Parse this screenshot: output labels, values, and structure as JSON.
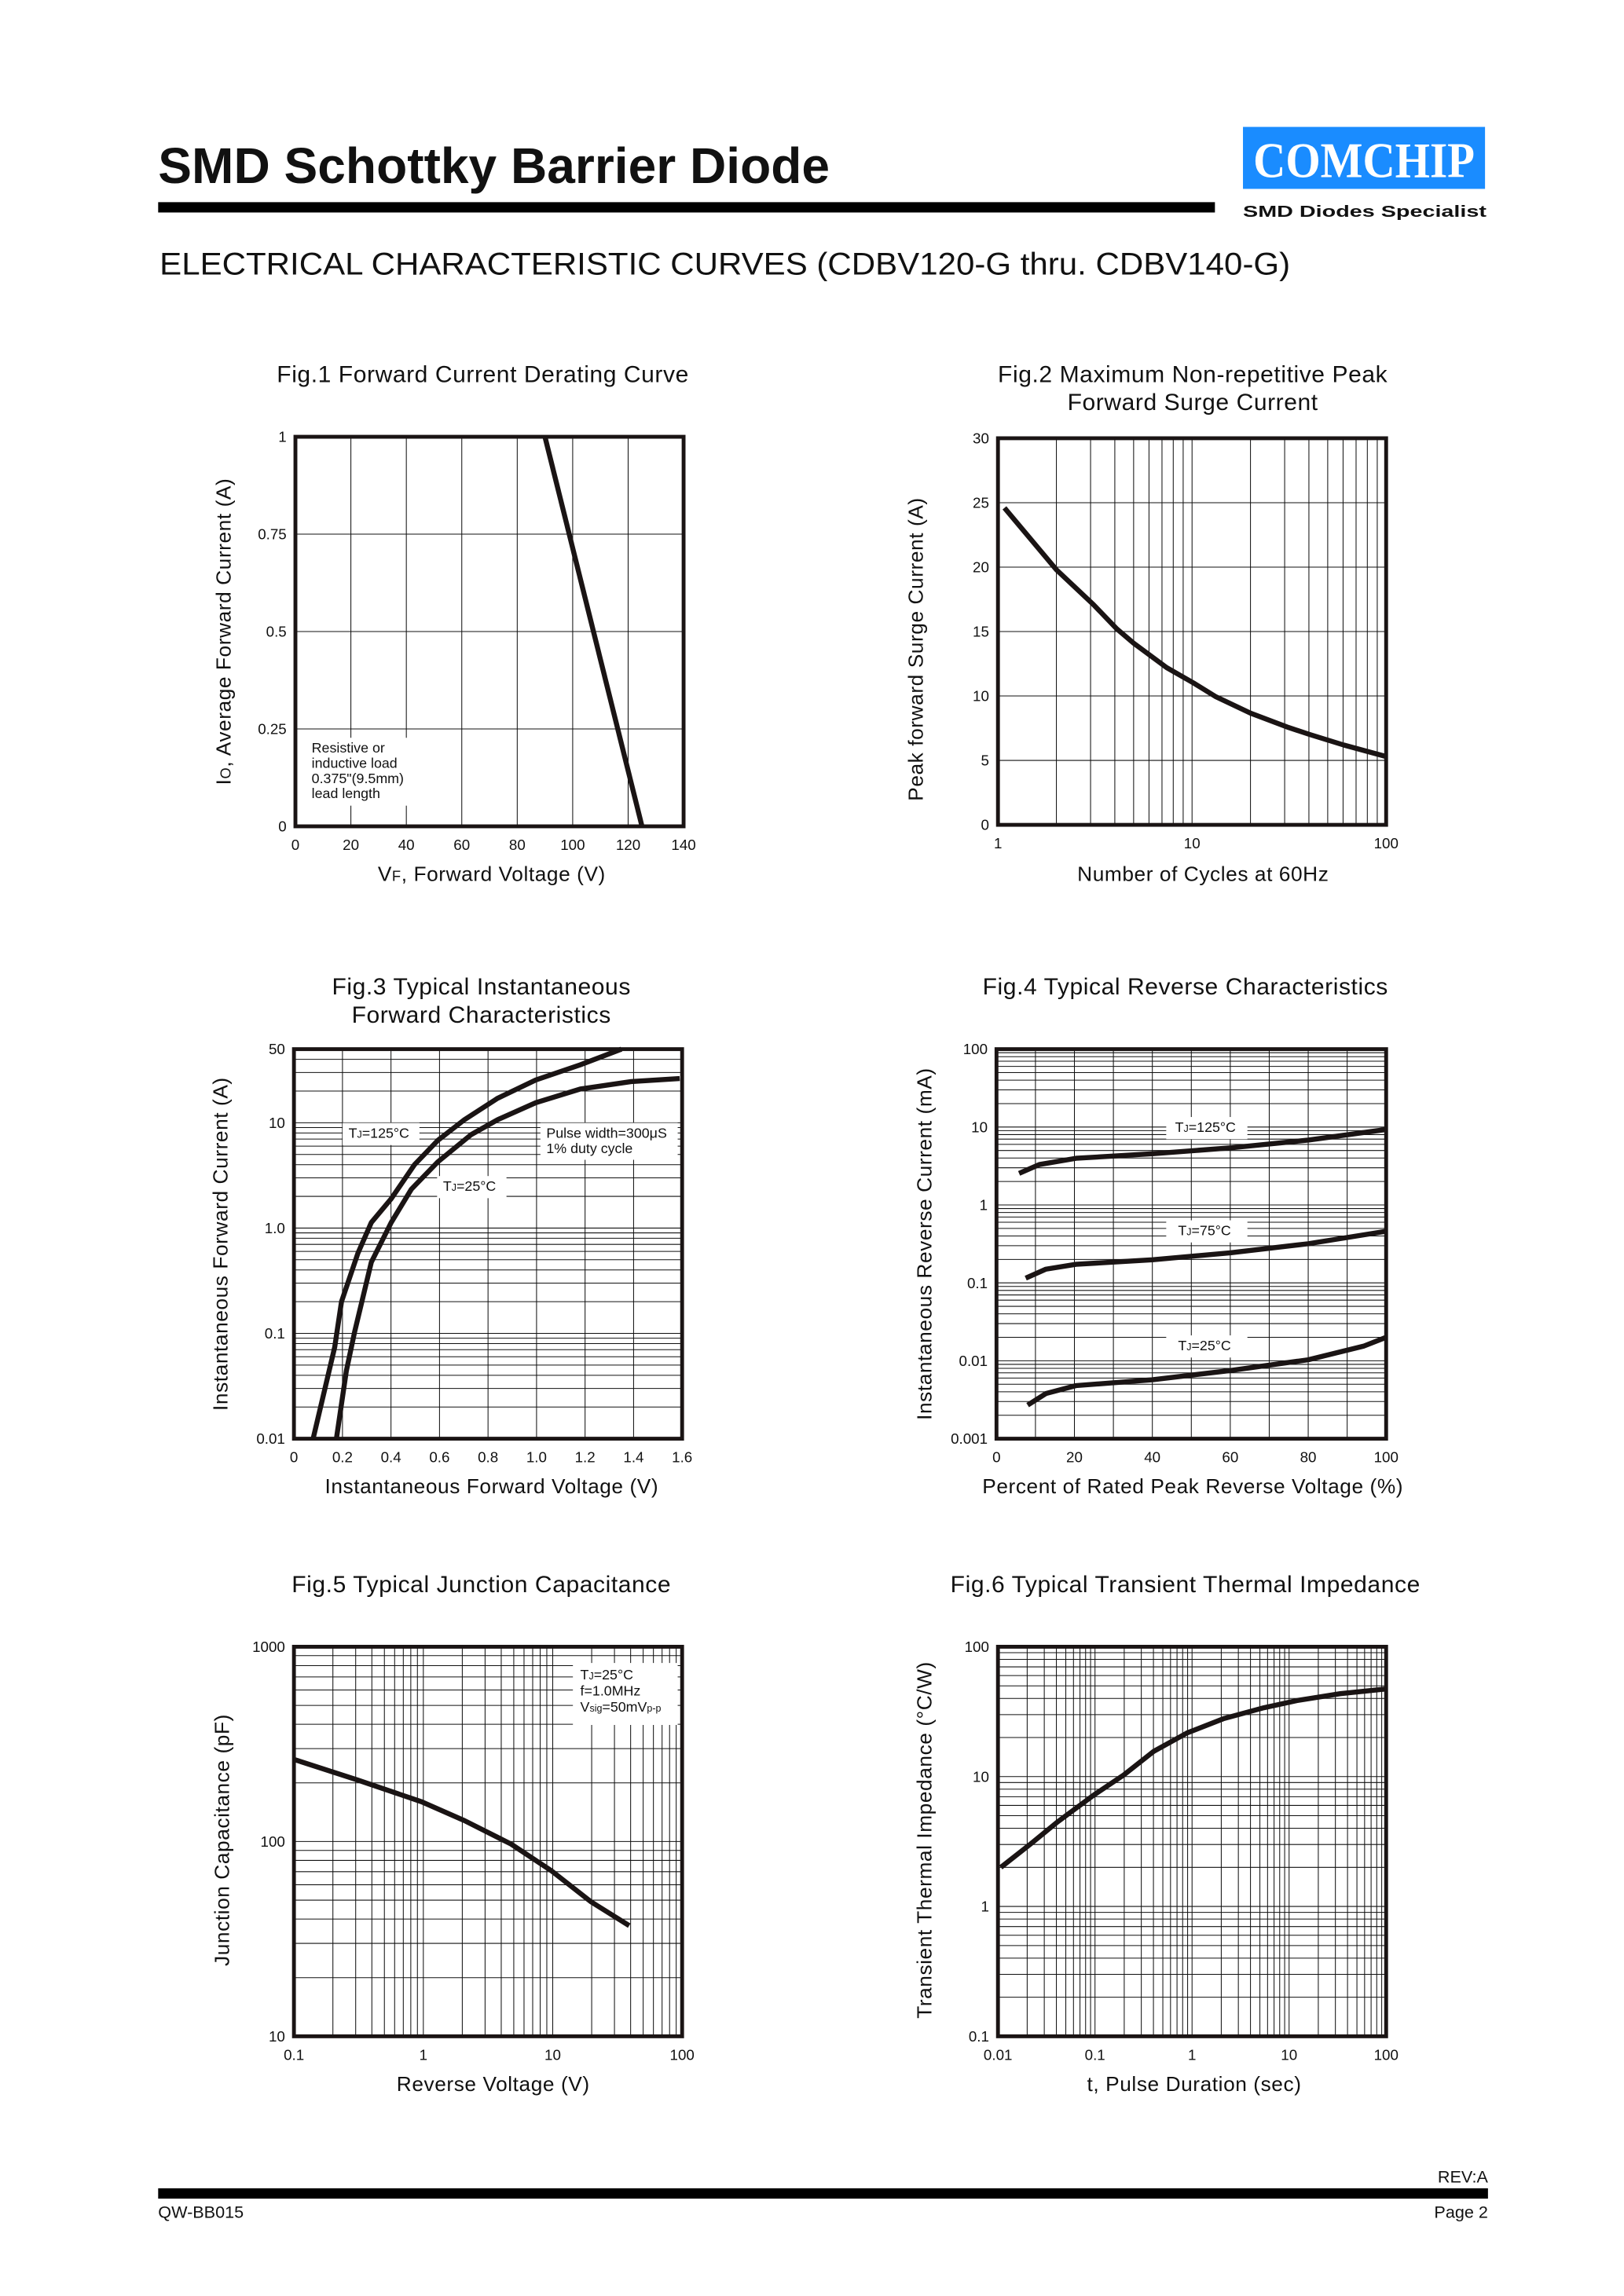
{
  "header": {
    "title": "SMD Schottky Barrier Diode",
    "logo_text": "COMCHIP",
    "logo_color": "#1a8cff",
    "tagline": "SMD Diodes Specialist",
    "subtitle": "ELECTRICAL CHARACTERISTIC CURVES (CDBV120-G thru. CDBV140-G)"
  },
  "footer": {
    "revision": "REV:A",
    "doc_code": "QW-BB015",
    "page": "Page 2"
  },
  "chart_data": [
    {
      "type": "line",
      "title_lines": [
        "Fig.1 Forward Current Derating Curve"
      ],
      "xlabel": {
        "main": "V",
        "sub": "F",
        "rest": ", Forward Voltage (V)"
      },
      "ylabel": {
        "main": "I",
        "sub": "O",
        "rest": ", Average Forward Current (A)"
      },
      "x_scale": "linear",
      "xlim": [
        0,
        140
      ],
      "x_grid_step": 20,
      "x_tick_values": [
        0,
        20,
        40,
        60,
        80,
        100,
        120,
        140
      ],
      "x_tick_labels": [
        "0",
        "20",
        "40",
        "60",
        "80",
        "100",
        "120",
        "140"
      ],
      "y_scale": "linear",
      "ylim": [
        0,
        1
      ],
      "y_grid_step": 0.25,
      "y_tick_values": [
        0,
        0.25,
        0.5,
        0.75,
        1
      ],
      "y_tick_labels": [
        "0",
        "0.25",
        "0.5",
        "0.75",
        "1"
      ],
      "grid": true,
      "series": [
        {
          "points": [
            [
              90,
              1
            ],
            [
              125,
              0
            ]
          ]
        }
      ],
      "annotations": [
        {
          "lines": [
            [
              [
                "Resistive or",
                0
              ]
            ],
            [
              [
                "inductive load",
                0
              ]
            ],
            [
              [
                "0.375\"(9.5mm)",
                0
              ]
            ],
            [
              [
                "lead length",
                0
              ]
            ]
          ]
        }
      ]
    },
    {
      "type": "line",
      "title_lines": [
        "Fig.2 Maximum Non-repetitive Peak",
        "Forward Surge Current"
      ],
      "xlabel": {
        "main": "Number of Cycles at 60Hz",
        "sub": "",
        "rest": ""
      },
      "ylabel": {
        "main": "Peak forward Surge Current (A)",
        "sub": "",
        "rest": ""
      },
      "x_scale": "log",
      "xlim": [
        1,
        100
      ],
      "x_tick_values": [
        1,
        10,
        100
      ],
      "x_tick_labels": [
        "1",
        "10",
        "100"
      ],
      "y_scale": "linear",
      "ylim": [
        0,
        30
      ],
      "y_grid_step": 5,
      "y_tick_values": [
        0,
        5,
        10,
        15,
        20,
        25,
        30
      ],
      "y_tick_labels": [
        "0",
        "5",
        "10",
        "15",
        "20",
        "25",
        "30"
      ],
      "grid": true,
      "series": [
        {
          "points": [
            [
              1.08,
              24.6
            ],
            [
              2.0,
              19.8
            ],
            [
              3.1,
              17.1
            ],
            [
              4.1,
              15.2
            ],
            [
              5.0,
              14.1
            ],
            [
              7.4,
              12.2
            ],
            [
              10.2,
              11.0
            ],
            [
              13.2,
              9.96
            ],
            [
              20,
              8.67
            ],
            [
              30.8,
              7.6
            ],
            [
              40.6,
              7.0
            ],
            [
              60.3,
              6.2
            ],
            [
              100,
              5.3
            ]
          ]
        }
      ],
      "annotations": []
    },
    {
      "type": "line",
      "title_lines": [
        "Fig.3 Typical Instantaneous",
        "Forward Characteristics"
      ],
      "xlabel": {
        "main": "Instantaneous Forward Voltage (V)",
        "sub": "",
        "rest": ""
      },
      "ylabel": {
        "main": "Instantaneous Forward Current (A)",
        "sub": "",
        "rest": ""
      },
      "x_scale": "linear",
      "xlim": [
        0,
        1.6
      ],
      "x_grid_step": 0.2,
      "x_tick_values": [
        0,
        0.2,
        0.4,
        0.6,
        0.8,
        1.0,
        1.2,
        1.4,
        1.6
      ],
      "x_tick_labels": [
        "0",
        "0.2",
        "0.4",
        "0.6",
        "0.8",
        "1.0",
        "1.2",
        "1.4",
        "1.6"
      ],
      "y_scale": "log",
      "ylim": [
        0.01,
        50
      ],
      "y_tick_values": [
        0.01,
        0.1,
        1,
        10,
        50
      ],
      "y_tick_labels": [
        "0.01",
        "0.1",
        "1.0",
        "10",
        "50"
      ],
      "grid": true,
      "series": [
        {
          "name": "TJ=125°C",
          "points": [
            [
              0.079,
              0.01
            ],
            [
              0.168,
              0.074
            ],
            [
              0.196,
              0.2
            ],
            [
              0.264,
              0.58
            ],
            [
              0.319,
              1.13
            ],
            [
              0.401,
              1.9
            ],
            [
              0.497,
              4.0
            ],
            [
              0.593,
              6.8
            ],
            [
              0.703,
              10.7
            ],
            [
              0.84,
              17.1
            ],
            [
              0.997,
              25.5
            ],
            [
              1.18,
              35.5
            ],
            [
              1.35,
              50
            ]
          ]
        },
        {
          "name": "TJ=25°C",
          "points": [
            [
              0.175,
              0.01
            ],
            [
              0.216,
              0.044
            ],
            [
              0.25,
              0.103
            ],
            [
              0.319,
              0.475
            ],
            [
              0.401,
              1.13
            ],
            [
              0.484,
              2.34
            ],
            [
              0.593,
              4.25
            ],
            [
              0.73,
              7.7
            ],
            [
              0.84,
              10.7
            ],
            [
              0.997,
              15.5
            ],
            [
              1.18,
              20.9
            ],
            [
              1.39,
              24.6
            ],
            [
              1.59,
              26.3
            ]
          ]
        }
      ],
      "annotations": [
        {
          "lines": [
            [
              [
                "T",
                0
              ],
              [
                "J",
                1
              ],
              [
                "=125°C",
                0
              ]
            ]
          ]
        },
        {
          "lines": [
            [
              [
                "Pulse width=300μS",
                0
              ]
            ],
            [
              [
                "1% duty cycle",
                0
              ]
            ]
          ]
        },
        {
          "lines": [
            [
              [
                "T",
                0
              ],
              [
                "J",
                1
              ],
              [
                "=25°C",
                0
              ]
            ]
          ]
        }
      ]
    },
    {
      "type": "line",
      "title_lines": [
        "Fig.4 Typical Reverse Characteristics"
      ],
      "xlabel": {
        "main": "Percent of Rated Peak Reverse Voltage (%)",
        "sub": "",
        "rest": ""
      },
      "ylabel": {
        "main": "Instantaneous Reverse Current (mA)",
        "sub": "",
        "rest": ""
      },
      "x_scale": "linear",
      "xlim": [
        0,
        100
      ],
      "x_grid_step": 10,
      "x_tick_values": [
        0,
        20,
        40,
        60,
        80,
        100
      ],
      "x_tick_labels": [
        "0",
        "20",
        "40",
        "60",
        "80",
        "100"
      ],
      "y_scale": "log",
      "ylim": [
        0.001,
        100
      ],
      "y_tick_values": [
        0.001,
        0.01,
        0.1,
        1,
        10,
        100
      ],
      "y_tick_labels": [
        "0.001",
        "0.01",
        "0.1",
        "1",
        "10",
        "100"
      ],
      "grid": true,
      "series": [
        {
          "name": "TJ=125°C",
          "points": [
            [
              5.8,
              2.54
            ],
            [
              11,
              3.3
            ],
            [
              20.4,
              3.97
            ],
            [
              40,
              4.55
            ],
            [
              60,
              5.4
            ],
            [
              80,
              6.8
            ],
            [
              100,
              9.3
            ]
          ]
        },
        {
          "name": "TJ=75°C",
          "points": [
            [
              7.5,
              0.115
            ],
            [
              12.7,
              0.15
            ],
            [
              20.4,
              0.173
            ],
            [
              40,
              0.198
            ],
            [
              60,
              0.243
            ],
            [
              80,
              0.318
            ],
            [
              100,
              0.46
            ]
          ]
        },
        {
          "name": "TJ=25°C",
          "points": [
            [
              8,
              0.0027
            ],
            [
              12.7,
              0.0038
            ],
            [
              20.4,
              0.0048
            ],
            [
              40,
              0.0057
            ],
            [
              60,
              0.0075
            ],
            [
              80,
              0.0103
            ],
            [
              94.2,
              0.0154
            ],
            [
              100,
              0.02
            ]
          ]
        }
      ],
      "annotations": [
        {
          "lines": [
            [
              [
                "T",
                0
              ],
              [
                "J",
                1
              ],
              [
                "=125°C",
                0
              ]
            ]
          ]
        },
        {
          "lines": [
            [
              [
                "T",
                0
              ],
              [
                "J",
                1
              ],
              [
                "=75°C",
                0
              ]
            ]
          ]
        },
        {
          "lines": [
            [
              [
                "T",
                0
              ],
              [
                "J",
                1
              ],
              [
                "=25°C",
                0
              ]
            ]
          ]
        }
      ]
    },
    {
      "type": "line",
      "title_lines": [
        "Fig.5 Typical Junction Capacitance"
      ],
      "xlabel": {
        "main": "Reverse Voltage (V)",
        "sub": "",
        "rest": ""
      },
      "ylabel": {
        "main": "Junction Capacitance (pF)",
        "sub": "",
        "rest": ""
      },
      "x_scale": "log",
      "xlim": [
        0.1,
        100
      ],
      "x_tick_values": [
        0.1,
        1,
        10,
        100
      ],
      "x_tick_labels": [
        "0.1",
        "1",
        "10",
        "100"
      ],
      "y_scale": "log",
      "ylim": [
        10,
        1000
      ],
      "y_tick_values": [
        10,
        100,
        1000
      ],
      "y_tick_labels": [
        "10",
        "100",
        "1000"
      ],
      "grid": true,
      "series": [
        {
          "points": [
            [
              0.1,
              264
            ],
            [
              0.31,
              207
            ],
            [
              0.97,
              160
            ],
            [
              2.08,
              128
            ],
            [
              4.77,
              97
            ],
            [
              9.7,
              71
            ],
            [
              19.8,
              49
            ],
            [
              39,
              37
            ]
          ]
        }
      ],
      "annotations": [
        {
          "lines": [
            [
              [
                "T",
                0
              ],
              [
                "J",
                1
              ],
              [
                "=25°C",
                0
              ]
            ],
            [
              [
                "f=1.0MHz",
                0
              ]
            ],
            [
              [
                "V",
                0
              ],
              [
                "sig",
                1
              ],
              [
                "=50mV",
                0
              ],
              [
                "p-p",
                1
              ]
            ]
          ]
        }
      ]
    },
    {
      "type": "line",
      "title_lines": [
        "Fig.6 Typical Transient Thermal Impedance"
      ],
      "xlabel": {
        "main": "t, Pulse Duration (sec)",
        "sub": "",
        "rest": ""
      },
      "ylabel": {
        "main": "Transient Thermal Impedance (°C/W)",
        "sub": "",
        "rest": ""
      },
      "x_scale": "log",
      "xlim": [
        0.01,
        100
      ],
      "x_tick_values": [
        0.01,
        0.1,
        1,
        10,
        100
      ],
      "x_tick_labels": [
        "0.01",
        "0.1",
        "1",
        "10",
        "100"
      ],
      "y_scale": "log",
      "ylim": [
        0.1,
        100
      ],
      "y_tick_values": [
        0.1,
        1,
        10,
        100
      ],
      "y_tick_labels": [
        "0.1",
        "1",
        "10",
        "100"
      ],
      "grid": true,
      "series": [
        {
          "points": [
            [
              0.0107,
              2.0
            ],
            [
              0.0217,
              3.03
            ],
            [
              0.041,
              4.47
            ],
            [
              0.097,
              7.2
            ],
            [
              0.198,
              10.3
            ],
            [
              0.4,
              15.6
            ],
            [
              0.89,
              21.7
            ],
            [
              2.1,
              27.9
            ],
            [
              5.5,
              33.9
            ],
            [
              12,
              38.5
            ],
            [
              33.6,
              43.5
            ],
            [
              100,
              47.3
            ]
          ]
        }
      ],
      "annotations": []
    }
  ]
}
